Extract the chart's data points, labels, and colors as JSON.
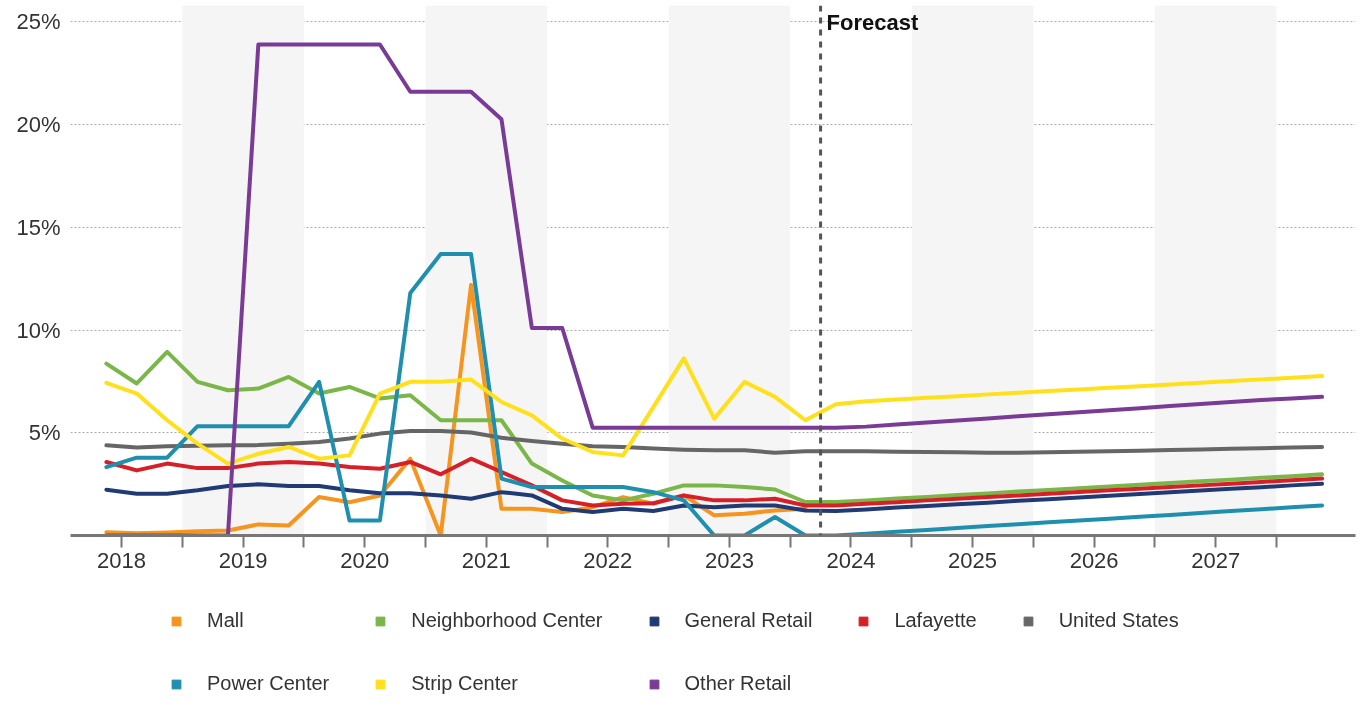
{
  "chart_data": {
    "type": "line",
    "x": [
      2018.375,
      2018.625,
      2018.875,
      2019.125,
      2019.375,
      2019.625,
      2019.875,
      2020.125,
      2020.375,
      2020.625,
      2020.875,
      2021.125,
      2021.375,
      2021.625,
      2021.875,
      2022.125,
      2022.375,
      2022.625,
      2022.875,
      2023.125,
      2023.375,
      2023.625,
      2023.875,
      2024.125,
      2024.375,
      2024.625,
      2024.875,
      2025.125,
      2025.375,
      2025.625,
      2025.875,
      2026.125,
      2026.375,
      2026.625,
      2026.875,
      2027.125,
      2027.375,
      2027.625,
      2027.875,
      2028.125,
      2028.375
    ],
    "series": [
      {
        "name": "Mall",
        "color": "#f7941d",
        "values": [
          0.16,
          0.11,
          0.15,
          0.21,
          0.24,
          0.54,
          0.49,
          1.87,
          1.62,
          1.95,
          3.74,
          0,
          12.2,
          1.3,
          1.3,
          1.14,
          1.38,
          1.87,
          1.55,
          1.95,
          0.98,
          1.06,
          1.22,
          1.3,
          null,
          null,
          null,
          null,
          null,
          null,
          null,
          null,
          null,
          null,
          null,
          null,
          null,
          null,
          null,
          null,
          null
        ]
      },
      {
        "name": "Neighborhood Center",
        "color": "#7ab648",
        "values": [
          8.37,
          7.4,
          8.94,
          7.48,
          7.07,
          7.15,
          7.72,
          6.91,
          7.23,
          6.67,
          6.83,
          5.61,
          5.61,
          5.61,
          3.5,
          2.68,
          1.95,
          1.71,
          2.03,
          2.44,
          2.44,
          2.36,
          2.24,
          1.63,
          1.63,
          1.71,
          1.8,
          1.88,
          1.97,
          2.05,
          2.14,
          2.22,
          2.3,
          2.39,
          2.47,
          2.56,
          2.64,
          2.72,
          2.81,
          2.89,
          2.98
        ]
      },
      {
        "name": "General Retail",
        "color": "#1f3a75",
        "values": [
          2.23,
          2.03,
          2.03,
          2.2,
          2.41,
          2.49,
          2.41,
          2.41,
          2.2,
          2.06,
          2.06,
          1.95,
          1.79,
          2.11,
          1.95,
          1.3,
          1.14,
          1.3,
          1.19,
          1.46,
          1.38,
          1.46,
          1.46,
          1.22,
          1.19,
          1.27,
          1.36,
          1.44,
          1.52,
          1.6,
          1.69,
          1.77,
          1.85,
          1.94,
          2.02,
          2.1,
          2.19,
          2.27,
          2.35,
          2.44,
          2.52
        ]
      },
      {
        "name": "Lafayette",
        "color": "#d71f27",
        "values": [
          3.58,
          3.17,
          3.5,
          3.28,
          3.28,
          3.5,
          3.58,
          3.5,
          3.33,
          3.25,
          3.58,
          2.98,
          3.74,
          3.09,
          2.44,
          1.71,
          1.46,
          1.55,
          1.57,
          1.95,
          1.71,
          1.71,
          1.79,
          1.46,
          1.46,
          1.54,
          1.62,
          1.71,
          1.79,
          1.87,
          1.95,
          2.03,
          2.12,
          2.2,
          2.28,
          2.36,
          2.44,
          2.52,
          2.61,
          2.69,
          2.77
        ]
      },
      {
        "name": "United States",
        "color": "#666666",
        "values": [
          4.39,
          4.28,
          4.34,
          4.37,
          4.39,
          4.4,
          4.47,
          4.55,
          4.72,
          4.96,
          5.09,
          5.09,
          5.01,
          4.76,
          4.6,
          4.47,
          4.34,
          4.31,
          4.23,
          4.18,
          4.15,
          4.15,
          4.03,
          4.1,
          4.1,
          4.1,
          4.08,
          4.07,
          4.05,
          4.03,
          4.03,
          4.05,
          4.08,
          4.1,
          4.13,
          4.16,
          4.19,
          4.22,
          4.25,
          4.28,
          4.31
        ]
      },
      {
        "name": "Power Center",
        "color": "#1e8fae",
        "values": [
          3.33,
          3.79,
          3.79,
          5.32,
          5.32,
          5.32,
          5.32,
          7.48,
          0.73,
          0.73,
          11.8,
          13.7,
          13.7,
          2.77,
          2.36,
          2.36,
          2.36,
          2.36,
          2.11,
          1.71,
          0,
          0,
          0.9,
          0,
          0,
          0.09,
          0.18,
          0.27,
          0.37,
          0.46,
          0.55,
          0.64,
          0.73,
          0.82,
          0.91,
          1.0,
          1.09,
          1.19,
          1.28,
          1.37,
          1.46
        ]
      },
      {
        "name": "Strip Center",
        "color": "#ffe01b",
        "values": [
          7.43,
          6.91,
          5.61,
          4.47,
          3.5,
          3.98,
          4.31,
          3.74,
          3.9,
          6.91,
          7.48,
          7.48,
          7.59,
          6.5,
          5.85,
          4.72,
          4.07,
          3.9,
          6.26,
          8.62,
          5.69,
          7.48,
          6.75,
          5.61,
          6.39,
          6.54,
          6.62,
          6.7,
          6.78,
          6.87,
          6.95,
          7.03,
          7.11,
          7.19,
          7.27,
          7.35,
          7.43,
          7.52,
          7.6,
          7.68,
          7.76
        ]
      },
      {
        "name": "Other Retail",
        "color": "#7a3b96",
        "values": [
          0,
          0,
          0,
          0,
          0,
          23.9,
          23.9,
          23.9,
          23.9,
          23.9,
          21.6,
          21.6,
          21.6,
          20.26,
          10.1,
          10.1,
          5.25,
          5.25,
          5.25,
          5.25,
          5.25,
          5.25,
          5.25,
          5.25,
          5.25,
          5.3,
          5.4,
          5.5,
          5.6,
          5.7,
          5.8,
          5.9,
          6.0,
          6.1,
          6.2,
          6.3,
          6.4,
          6.5,
          6.6,
          6.67,
          6.75
        ]
      }
    ],
    "xlim": [
      2018.08,
      2028.65
    ],
    "xticks": [
      {
        "value": 2018.5,
        "label": "2018"
      },
      {
        "value": 2019,
        "label": null
      },
      {
        "value": 2019.5,
        "label": "2019"
      },
      {
        "value": 2020,
        "label": null
      },
      {
        "value": 2020.5,
        "label": "2020"
      },
      {
        "value": 2021,
        "label": null
      },
      {
        "value": 2021.5,
        "label": "2021"
      },
      {
        "value": 2022,
        "label": null
      },
      {
        "value": 2022.5,
        "label": "2022"
      },
      {
        "value": 2023,
        "label": null
      },
      {
        "value": 2023.5,
        "label": "2023"
      },
      {
        "value": 2024,
        "label": null
      },
      {
        "value": 2024.5,
        "label": "2024"
      },
      {
        "value": 2025,
        "label": null
      },
      {
        "value": 2025.5,
        "label": "2025"
      },
      {
        "value": 2026,
        "label": null
      },
      {
        "value": 2026.5,
        "label": "2026"
      },
      {
        "value": 2027,
        "label": null
      },
      {
        "value": 2027.5,
        "label": "2027"
      },
      {
        "value": 2028,
        "label": null
      }
    ],
    "ylim": [
      0,
      25.8
    ],
    "yticks": [
      {
        "value": 5,
        "label": "5%"
      },
      {
        "value": 10,
        "label": "10%"
      },
      {
        "value": 15,
        "label": "15%"
      },
      {
        "value": 20,
        "label": "20%"
      },
      {
        "value": 25,
        "label": "25%"
      }
    ],
    "grid": "y",
    "legend": "bottom",
    "ref_lines": [
      {
        "axis": "x",
        "value": 2024.25,
        "label": "Forecast",
        "color": "#555555",
        "line_style": "dashed"
      }
    ],
    "bands": [
      {
        "axis": "x",
        "from": 2019,
        "to": 2020,
        "label": null,
        "color": "#f5f5f5"
      },
      {
        "axis": "x",
        "from": 2021,
        "to": 2022,
        "label": null,
        "color": "#f5f5f5"
      },
      {
        "axis": "x",
        "from": 2023,
        "to": 2024,
        "label": null,
        "color": "#f5f5f5"
      },
      {
        "axis": "x",
        "from": 2025,
        "to": 2026,
        "label": null,
        "color": "#f5f5f5"
      },
      {
        "axis": "x",
        "from": 2027,
        "to": 2028,
        "label": null,
        "color": "#f5f5f5"
      }
    ]
  }
}
